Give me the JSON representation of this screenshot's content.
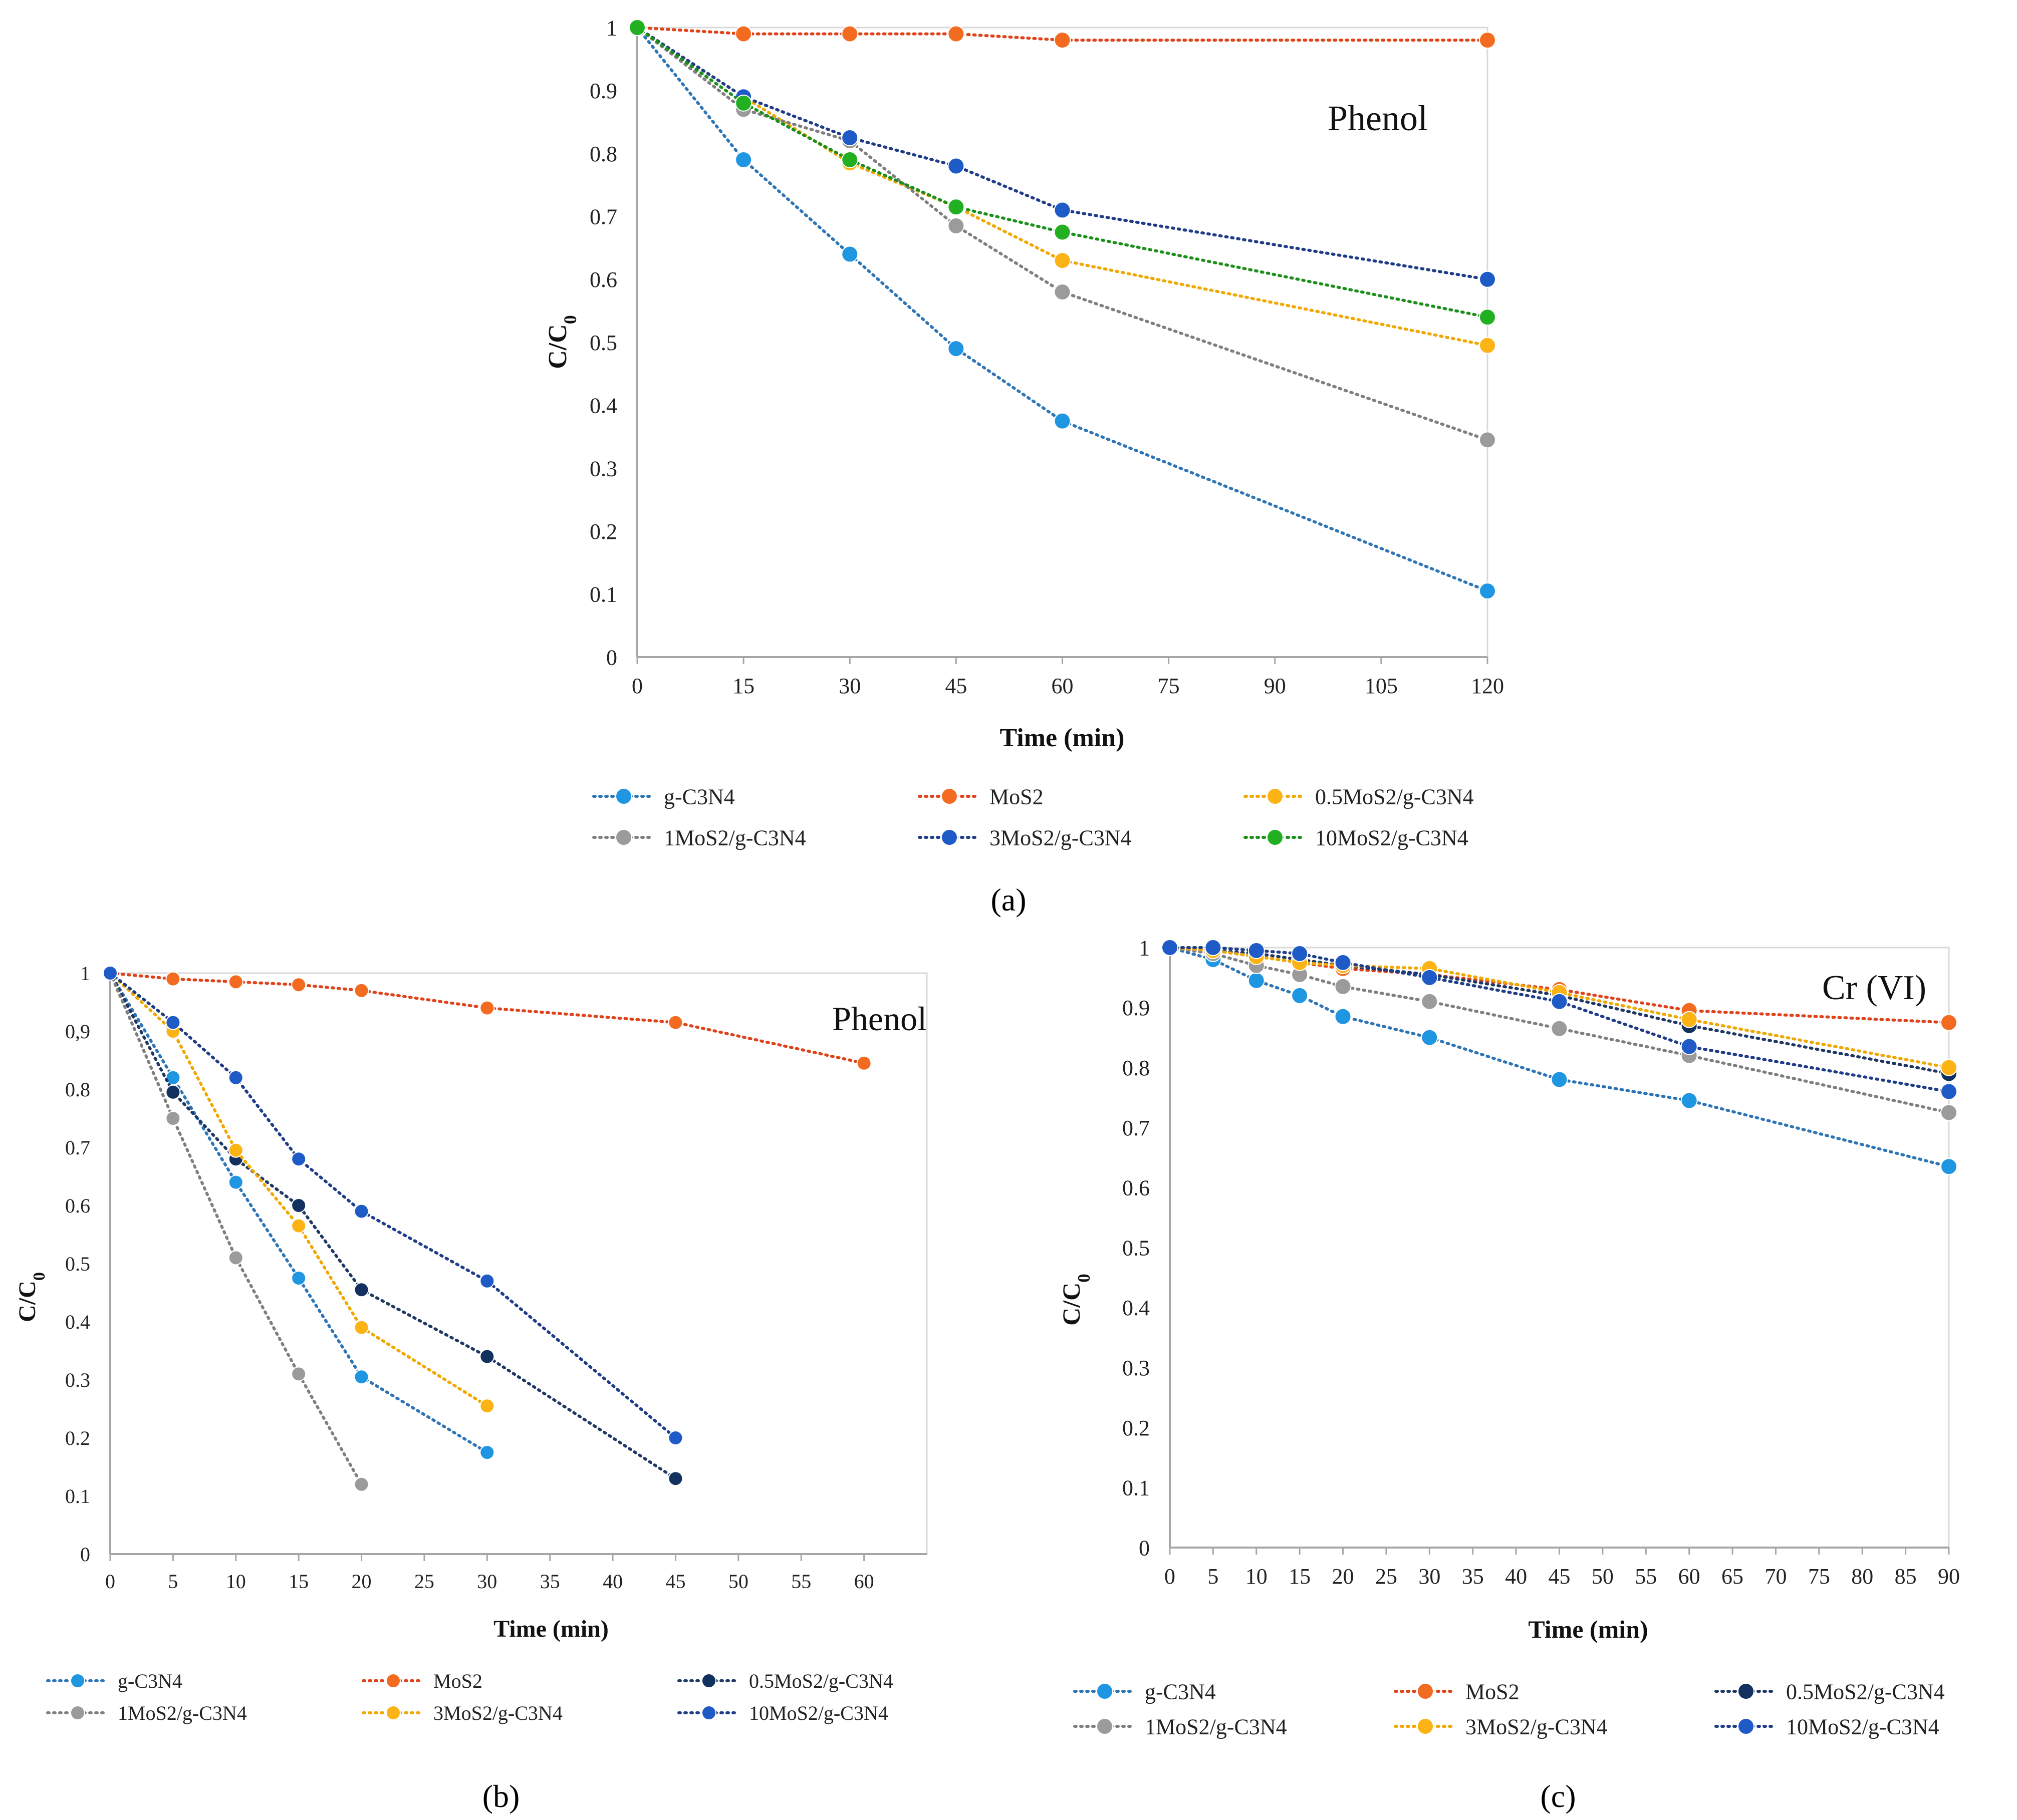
{
  "figure": {
    "panel_labels": [
      "(a)",
      "(b)",
      "(c)"
    ]
  },
  "chart_data": [
    {
      "panel": "a",
      "type": "line",
      "annotation": "Phenol",
      "xlabel": "Time (min)",
      "ylabel": "C/C",
      "ylabel_sub": "0",
      "xlim": [
        0,
        120
      ],
      "ylim": [
        0,
        1
      ],
      "x_ticks": [
        0,
        15,
        30,
        45,
        60,
        75,
        90,
        105,
        120
      ],
      "x_tick_labels": [
        "0",
        "15",
        "30",
        "45",
        "60",
        "75",
        "90",
        "105",
        "120"
      ],
      "y_ticks": [
        0,
        0.1,
        0.2,
        0.3,
        0.4,
        0.5,
        0.6,
        0.7,
        0.8,
        0.9,
        1
      ],
      "y_tick_labels": [
        "0",
        "0.1",
        "0.2",
        "0.3",
        "0.4",
        "0.5",
        "0.6",
        "0.7",
        "0.8",
        "0.9",
        "1"
      ],
      "grid": false,
      "legend_position": "bottom",
      "series": [
        {
          "name": "g-C3N4",
          "color": "#1f96e2",
          "line_color": "#2e75b6",
          "x": [
            0,
            15,
            30,
            45,
            60,
            120
          ],
          "y": [
            1,
            0.79,
            0.64,
            0.49,
            0.375,
            0.105
          ]
        },
        {
          "name": "MoS2",
          "color": "#f26b21",
          "line_color": "#e0421a",
          "x": [
            0,
            15,
            30,
            45,
            60,
            120
          ],
          "y": [
            1,
            0.99,
            0.99,
            0.99,
            0.98,
            0.98
          ]
        },
        {
          "name": "0.5MoS2/g-C3N4",
          "color": "#fbb316",
          "line_color": "#f0a800",
          "x": [
            0,
            15,
            30,
            45,
            60,
            120
          ],
          "y": [
            1,
            0.89,
            0.785,
            0.715,
            0.63,
            0.495
          ]
        },
        {
          "name": "1MoS2/g-C3N4",
          "color": "#9b9b9b",
          "line_color": "#7f7f7f",
          "x": [
            0,
            15,
            30,
            45,
            60,
            120
          ],
          "y": [
            1,
            0.87,
            0.82,
            0.685,
            0.58,
            0.345
          ]
        },
        {
          "name": "3MoS2/g-C3N4",
          "color": "#1e5bc6",
          "line_color": "#1f3c88",
          "x": [
            0,
            15,
            30,
            45,
            60,
            120
          ],
          "y": [
            1,
            0.89,
            0.825,
            0.78,
            0.71,
            0.6
          ]
        },
        {
          "name": "10MoS2/g-C3N4",
          "color": "#22b022",
          "line_color": "#1a8f1a",
          "x": [
            0,
            15,
            30,
            45,
            60,
            120
          ],
          "y": [
            1,
            0.88,
            0.79,
            0.715,
            0.675,
            0.54
          ]
        }
      ]
    },
    {
      "panel": "b",
      "type": "line",
      "annotation": "Phenol",
      "xlabel": "Time (min)",
      "ylabel": "C/C",
      "ylabel_sub": "0",
      "xlim": [
        0,
        65
      ],
      "ylim": [
        0,
        1
      ],
      "x_ticks": [
        0,
        5,
        10,
        15,
        20,
        25,
        30,
        35,
        40,
        45,
        50,
        55,
        60
      ],
      "x_tick_labels": [
        "0",
        "5",
        "10",
        "15",
        "20",
        "25",
        "30",
        "35",
        "40",
        "45",
        "50",
        "55",
        "60"
      ],
      "y_ticks": [
        0,
        0.1,
        0.2,
        0.3,
        0.4,
        0.5,
        0.6,
        0.7,
        0.8,
        0.9,
        1
      ],
      "y_tick_labels": [
        "0",
        "0.1",
        "0.2",
        "0.3",
        "0.4",
        "0.5",
        "0.6",
        "0.7",
        "0.8",
        "0,9",
        "1"
      ],
      "grid": false,
      "legend_position": "bottom",
      "series": [
        {
          "name": "g-C3N4",
          "color": "#1f96e2",
          "line_color": "#2e75b6",
          "x": [
            0,
            5,
            10,
            15,
            20,
            30
          ],
          "y": [
            1,
            0.82,
            0.64,
            0.475,
            0.305,
            0.175
          ]
        },
        {
          "name": "MoS2",
          "color": "#f26b21",
          "line_color": "#e0421a",
          "x": [
            0,
            5,
            10,
            15,
            20,
            30,
            45,
            60
          ],
          "y": [
            1,
            0.99,
            0.985,
            0.98,
            0.97,
            0.94,
            0.915,
            0.845
          ]
        },
        {
          "name": "0.5MoS2/g-C3N4",
          "color": "#13315f",
          "line_color": "#1f3864",
          "x": [
            0,
            5,
            10,
            15,
            20,
            30,
            45
          ],
          "y": [
            1,
            0.795,
            0.68,
            0.6,
            0.455,
            0.34,
            0.13
          ]
        },
        {
          "name": "1MoS2/g-C3N4",
          "color": "#9b9b9b",
          "line_color": "#7f7f7f",
          "x": [
            0,
            5,
            10,
            15,
            20
          ],
          "y": [
            1,
            0.75,
            0.51,
            0.31,
            0.12
          ]
        },
        {
          "name": "3MoS2/g-C3N4",
          "color": "#fbb316",
          "line_color": "#f0a800",
          "x": [
            0,
            5,
            10,
            15,
            20,
            30
          ],
          "y": [
            1,
            0.9,
            0.695,
            0.565,
            0.39,
            0.255
          ]
        },
        {
          "name": "10MoS2/g-C3N4",
          "color": "#1e5bc6",
          "line_color": "#1f3c88",
          "x": [
            0,
            5,
            10,
            15,
            20,
            30,
            45
          ],
          "y": [
            1,
            0.915,
            0.82,
            0.68,
            0.59,
            0.47,
            0.2
          ]
        }
      ]
    },
    {
      "panel": "c",
      "type": "line",
      "annotation": "Cr (VI)",
      "xlabel": "Time (min)",
      "ylabel": "C/C",
      "ylabel_sub": "0",
      "xlim": [
        0,
        90
      ],
      "ylim": [
        0,
        1
      ],
      "x_ticks": [
        0,
        5,
        10,
        15,
        20,
        25,
        30,
        35,
        40,
        45,
        50,
        55,
        60,
        65,
        70,
        75,
        80,
        85,
        90
      ],
      "x_tick_labels": [
        "0",
        "5",
        "10",
        "15",
        "20",
        "25",
        "30",
        "35",
        "40",
        "45",
        "50",
        "55",
        "60",
        "65",
        "70",
        "75",
        "80",
        "85",
        "90"
      ],
      "y_ticks": [
        0,
        0.1,
        0.2,
        0.3,
        0.4,
        0.5,
        0.6,
        0.7,
        0.8,
        0.9,
        1
      ],
      "y_tick_labels": [
        "0",
        "0.1",
        "0.2",
        "0.3",
        "0.4",
        "0.5",
        "0.6",
        "0.7",
        "0.8",
        "0.9",
        "1"
      ],
      "grid": false,
      "legend_position": "bottom",
      "series": [
        {
          "name": "g-C3N4",
          "color": "#1f96e2",
          "line_color": "#2e75b6",
          "x": [
            0,
            5,
            10,
            15,
            20,
            30,
            45,
            60,
            90
          ],
          "y": [
            1,
            0.98,
            0.945,
            0.92,
            0.885,
            0.85,
            0.78,
            0.745,
            0.635
          ]
        },
        {
          "name": "MoS2",
          "color": "#f26b21",
          "line_color": "#e0421a",
          "x": [
            0,
            5,
            10,
            15,
            20,
            30,
            45,
            60,
            90
          ],
          "y": [
            1,
            0.995,
            0.985,
            0.975,
            0.965,
            0.955,
            0.93,
            0.895,
            0.875
          ]
        },
        {
          "name": "0.5MoS2/g-C3N4",
          "color": "#13315f",
          "line_color": "#1f3864",
          "x": [
            0,
            5,
            10,
            15,
            20,
            30,
            45,
            60,
            90
          ],
          "y": [
            1,
            0.995,
            0.99,
            0.98,
            0.97,
            0.955,
            0.92,
            0.87,
            0.79
          ]
        },
        {
          "name": "1MoS2/g-C3N4",
          "color": "#9b9b9b",
          "line_color": "#7f7f7f",
          "x": [
            0,
            5,
            10,
            15,
            20,
            30,
            45,
            60,
            90
          ],
          "y": [
            1,
            0.99,
            0.97,
            0.955,
            0.935,
            0.91,
            0.865,
            0.82,
            0.725
          ]
        },
        {
          "name": "3MoS2/g-C3N4",
          "color": "#fbb316",
          "line_color": "#f0a800",
          "x": [
            0,
            5,
            10,
            15,
            20,
            30,
            45,
            60,
            90
          ],
          "y": [
            1,
            0.995,
            0.985,
            0.975,
            0.97,
            0.965,
            0.925,
            0.88,
            0.8
          ]
        },
        {
          "name": "10MoS2/g-C3N4",
          "color": "#1e5bc6",
          "line_color": "#1f3c88",
          "x": [
            0,
            5,
            10,
            15,
            20,
            30,
            45,
            60,
            90
          ],
          "y": [
            1,
            1.0,
            0.995,
            0.99,
            0.975,
            0.95,
            0.91,
            0.835,
            0.76
          ]
        }
      ]
    }
  ]
}
